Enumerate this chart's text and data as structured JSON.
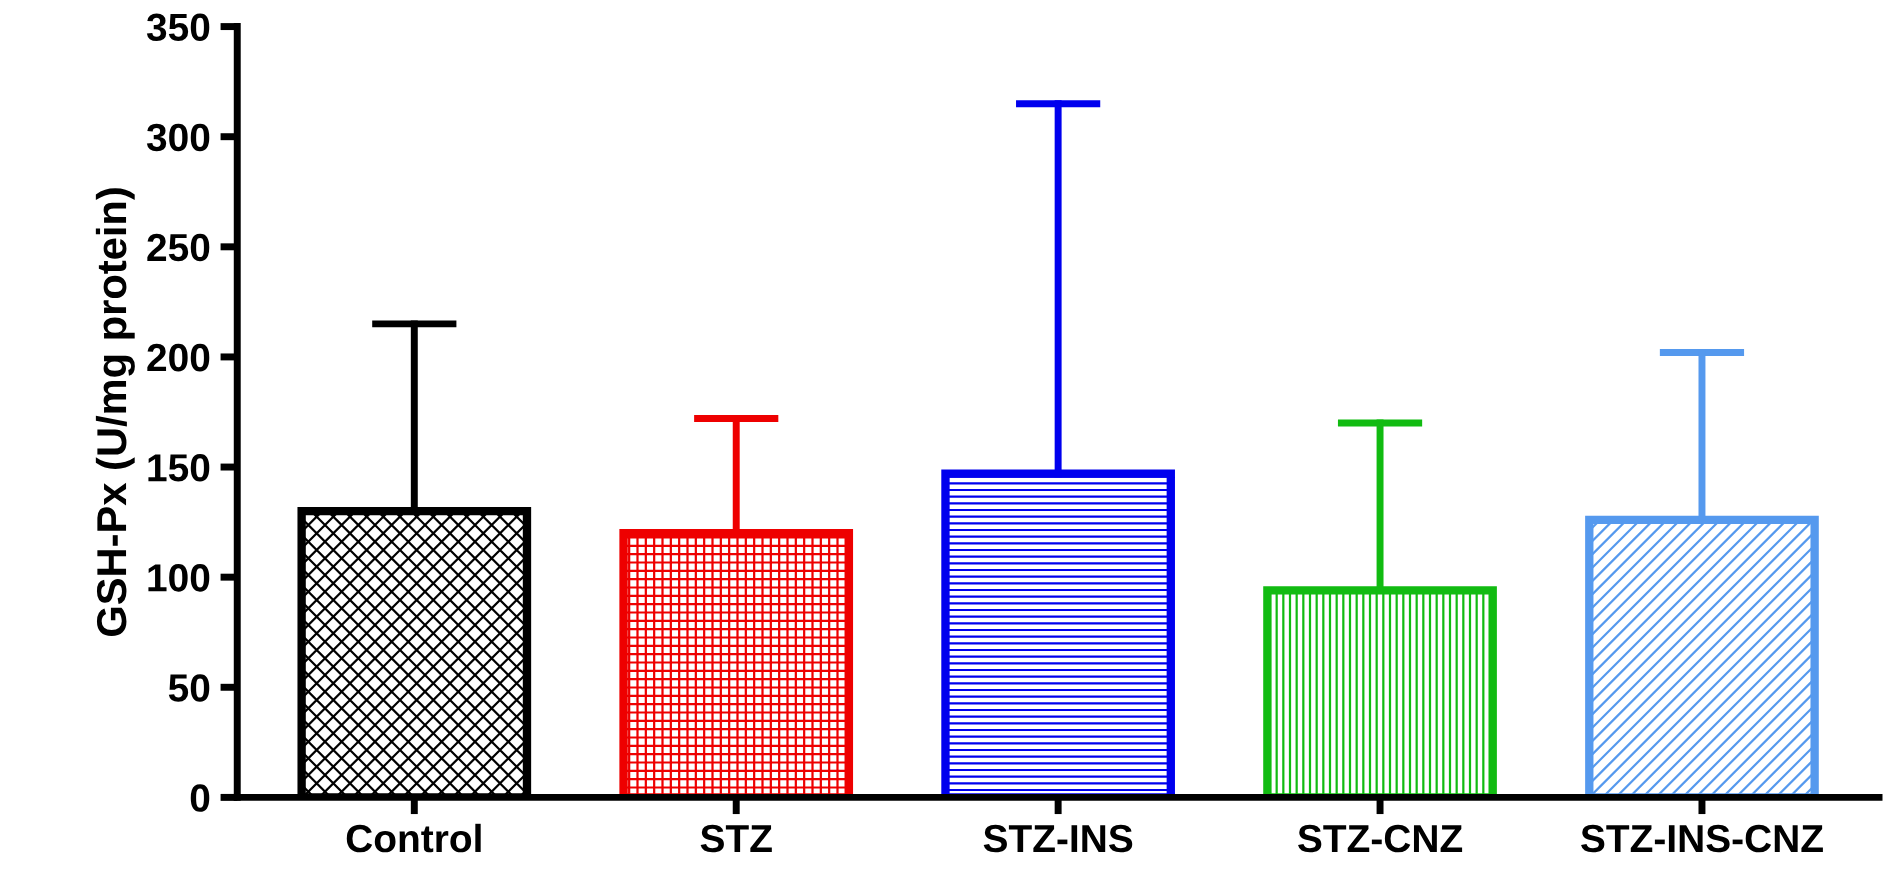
{
  "chart_data": {
    "type": "bar",
    "ylabel": "GSH-Px (U/mg protein)",
    "categories": [
      "Control",
      "STZ",
      "STZ-INS",
      "STZ-CNZ",
      "STZ-INS-CNZ"
    ],
    "values": [
      130,
      120,
      147,
      94,
      126
    ],
    "errors": [
      [
        130,
        215
      ],
      [
        120,
        172
      ],
      [
        147,
        315
      ],
      [
        94,
        170
      ],
      [
        126,
        202
      ]
    ],
    "colors": [
      "#000000",
      "#ee0000",
      "#0000ee",
      "#11bb11",
      "#5599ee"
    ],
    "ylim": [
      0,
      350
    ],
    "yticks": [
      0,
      50,
      100,
      150,
      200,
      250,
      300,
      350
    ],
    "grid": false,
    "legend": false
  }
}
